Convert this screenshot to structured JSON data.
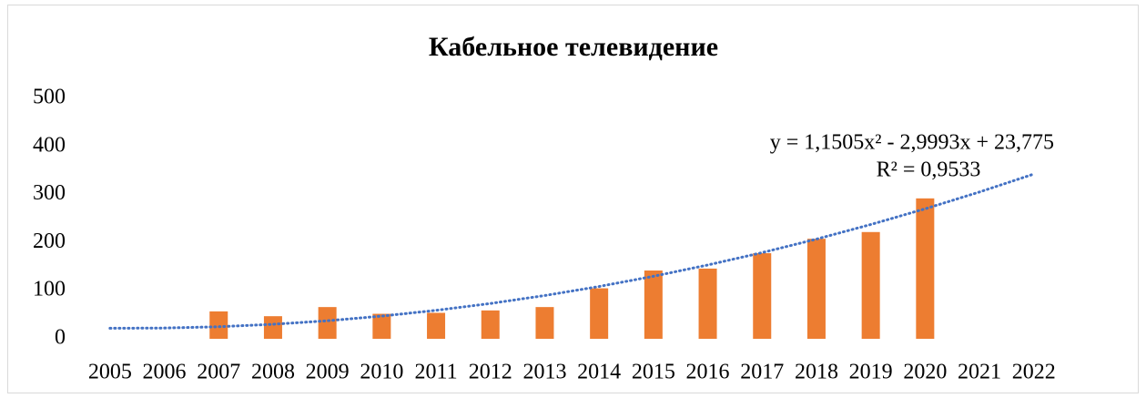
{
  "chart_data": {
    "type": "bar",
    "title": "Кабельное телевидение",
    "categories": [
      "2005",
      "2006",
      "2007",
      "2008",
      "2009",
      "2010",
      "2011",
      "2012",
      "2013",
      "2014",
      "2015",
      "2016",
      "2017",
      "2018",
      "2019",
      "2020",
      "2021",
      "2022"
    ],
    "values": [
      null,
      null,
      57,
      47,
      66,
      52,
      54,
      59,
      66,
      105,
      142,
      146,
      178,
      208,
      222,
      292,
      null,
      null
    ],
    "color": "#ed7d31",
    "ylim": [
      0,
      500
    ],
    "yticks": [
      0,
      100,
      200,
      300,
      400,
      500
    ],
    "grid": false,
    "trendline": {
      "equation": "y = 1,1505x² - 2,9993x + 23,775",
      "r_squared": "R² = 0,9533",
      "color": "#4472c4",
      "values": [
        21.9,
        22.4,
        25.1,
        30.2,
        37.5,
        47.2,
        59.2,
        73.4,
        90.0,
        108.8,
        130.0,
        153.5,
        179.2,
        207.3,
        237.7,
        270.3,
        305.3,
        342.6
      ]
    }
  }
}
